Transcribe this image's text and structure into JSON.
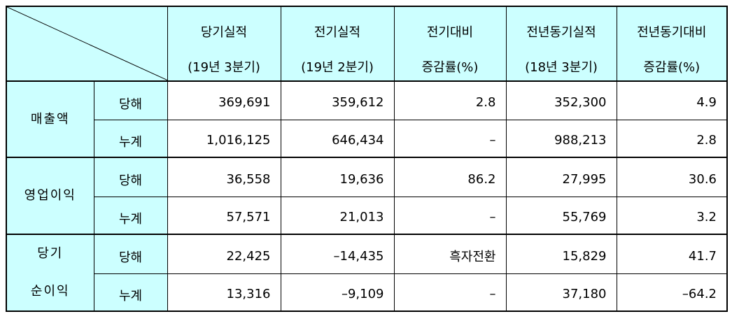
{
  "header": {
    "columns": [
      [
        "당기실적",
        "(19년 3분기)"
      ],
      [
        "전기실적",
        "(19년 2분기)"
      ],
      [
        "전기대비",
        "증감률(%)"
      ],
      [
        "전년동기실적",
        "(18년 3분기)"
      ],
      [
        "전년동기대비",
        "증감률(%)"
      ]
    ]
  },
  "groups": [
    {
      "name": [
        "매출액"
      ],
      "rows": [
        {
          "label": "당해",
          "values": [
            "369,691",
            "359,612",
            "2.8",
            "352,300",
            "4.9"
          ]
        },
        {
          "label": "누계",
          "values": [
            "1,016,125",
            "646,434",
            "–",
            "988,213",
            "2.8"
          ]
        }
      ]
    },
    {
      "name": [
        "영업이익"
      ],
      "rows": [
        {
          "label": "당해",
          "values": [
            "36,558",
            "19,636",
            "86.2",
            "27,995",
            "30.6"
          ]
        },
        {
          "label": "누계",
          "values": [
            "57,571",
            "21,013",
            "–",
            "55,769",
            "3.2"
          ]
        }
      ]
    },
    {
      "name": [
        "당기",
        "순이익"
      ],
      "rows": [
        {
          "label": "당해",
          "values": [
            "22,425",
            "–14,435",
            "흑자전환",
            "15,829",
            "41.7"
          ]
        },
        {
          "label": "누계",
          "values": [
            "13,316",
            "–9,109",
            "–",
            "37,180",
            "–64.2"
          ]
        }
      ]
    }
  ]
}
